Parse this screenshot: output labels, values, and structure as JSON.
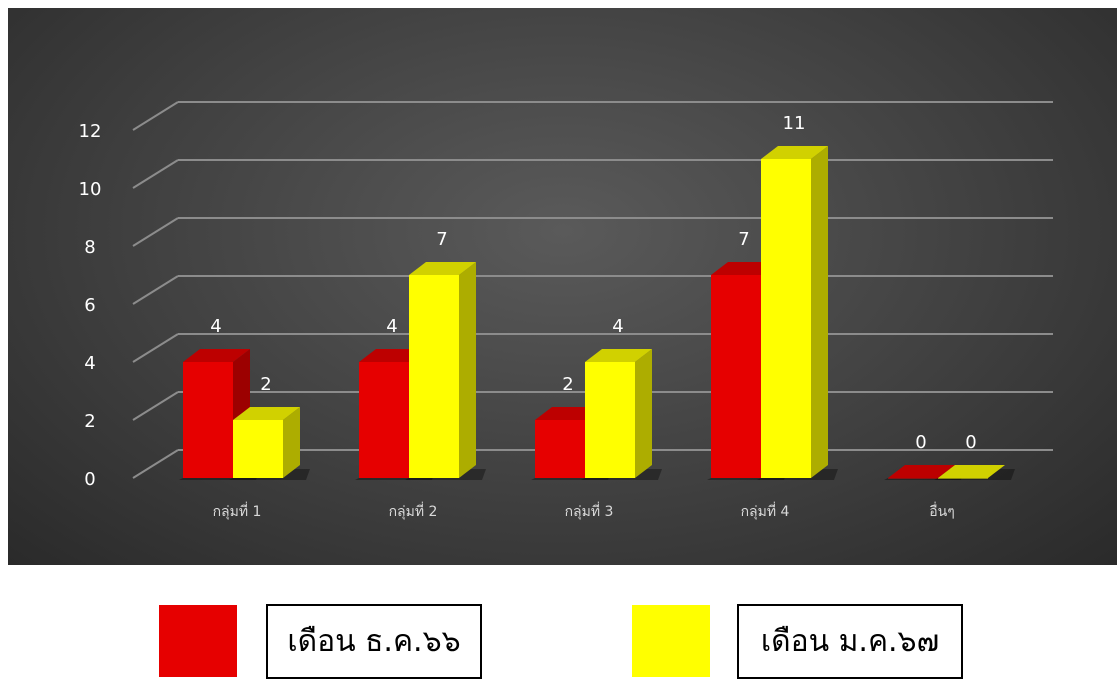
{
  "chart_data": {
    "type": "bar",
    "categories": [
      "กลุ่มที่ 1",
      "กลุ่มที่ 2",
      "กลุ่มที่ 3",
      "กลุ่มที่ 4",
      "อื่นๆ"
    ],
    "series": [
      {
        "name": "เดือน ธ.ค.๖๖",
        "values": [
          4,
          4,
          2,
          7,
          0
        ],
        "color": "#e60000"
      },
      {
        "name": "เดือน  ม.ค.๖๗",
        "values": [
          2,
          7,
          4,
          11,
          0
        ],
        "color": "#ffff00"
      }
    ],
    "ylim": [
      0,
      12
    ],
    "yticks": [
      "0",
      "2",
      "4",
      "6",
      "8",
      "10",
      "12"
    ],
    "grid": true,
    "legend": "bottom",
    "style": "3d-clustered-column"
  },
  "legend": {
    "series1_label": "เดือน ธ.ค.๖๖",
    "series2_label": "เดือน  ม.ค.๖๗"
  },
  "colors": {
    "background": "#3f3f3f",
    "gridline": "#8c8c8c",
    "text": "#ffffff"
  }
}
